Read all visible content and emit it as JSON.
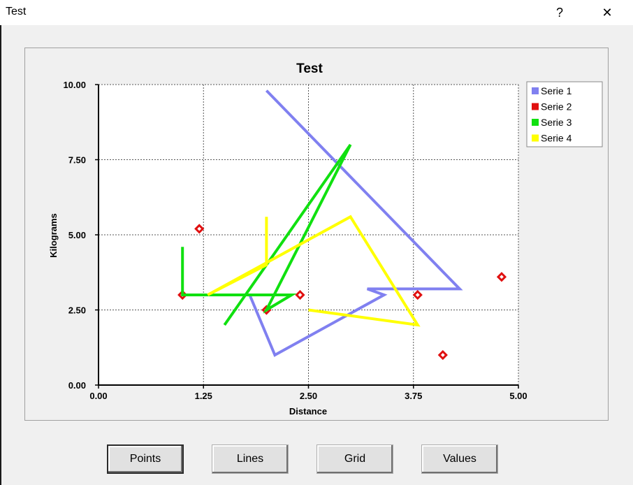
{
  "window": {
    "title": "Test",
    "help_glyph": "?",
    "close_glyph": "✕"
  },
  "buttons": {
    "points": "Points",
    "lines": "Lines",
    "grid": "Grid",
    "values": "Values"
  },
  "chart_data": {
    "type": "line",
    "title": "Test",
    "xlabel": "Distance",
    "ylabel": "Kilograms",
    "xlim": [
      0,
      5
    ],
    "ylim": [
      0,
      10
    ],
    "xticks": [
      "0.00",
      "1.25",
      "2.50",
      "3.75",
      "5.00"
    ],
    "yticks": [
      "0.00",
      "2.50",
      "5.00",
      "7.50",
      "10.00"
    ],
    "grid": true,
    "legend_position": "top-right",
    "series": [
      {
        "name": "Serie 1",
        "color": "#8080f0",
        "style": "line",
        "x": [
          2.0,
          4.3,
          3.2,
          3.4,
          2.1,
          1.8
        ],
        "y": [
          9.8,
          3.2,
          3.2,
          3.0,
          1.0,
          3.0
        ]
      },
      {
        "name": "Serie 2",
        "color": "#e01010",
        "style": "points",
        "x": [
          1.0,
          1.2,
          2.0,
          2.4,
          3.8,
          4.1,
          4.8
        ],
        "y": [
          3.0,
          5.2,
          2.5,
          3.0,
          3.0,
          1.0,
          3.6
        ]
      },
      {
        "name": "Serie 3",
        "color": "#10e010",
        "style": "line",
        "x": [
          1.0,
          1.0,
          2.3,
          2.0,
          3.0,
          1.5
        ],
        "y": [
          4.6,
          3.0,
          3.0,
          2.5,
          8.0,
          2.0
        ]
      },
      {
        "name": "Serie 4",
        "color": "#ffff00",
        "style": "line",
        "x": [
          2.0,
          2.0,
          1.3,
          3.0,
          3.8,
          2.5
        ],
        "y": [
          5.6,
          4.0,
          3.0,
          5.6,
          2.0,
          2.5
        ]
      }
    ]
  }
}
